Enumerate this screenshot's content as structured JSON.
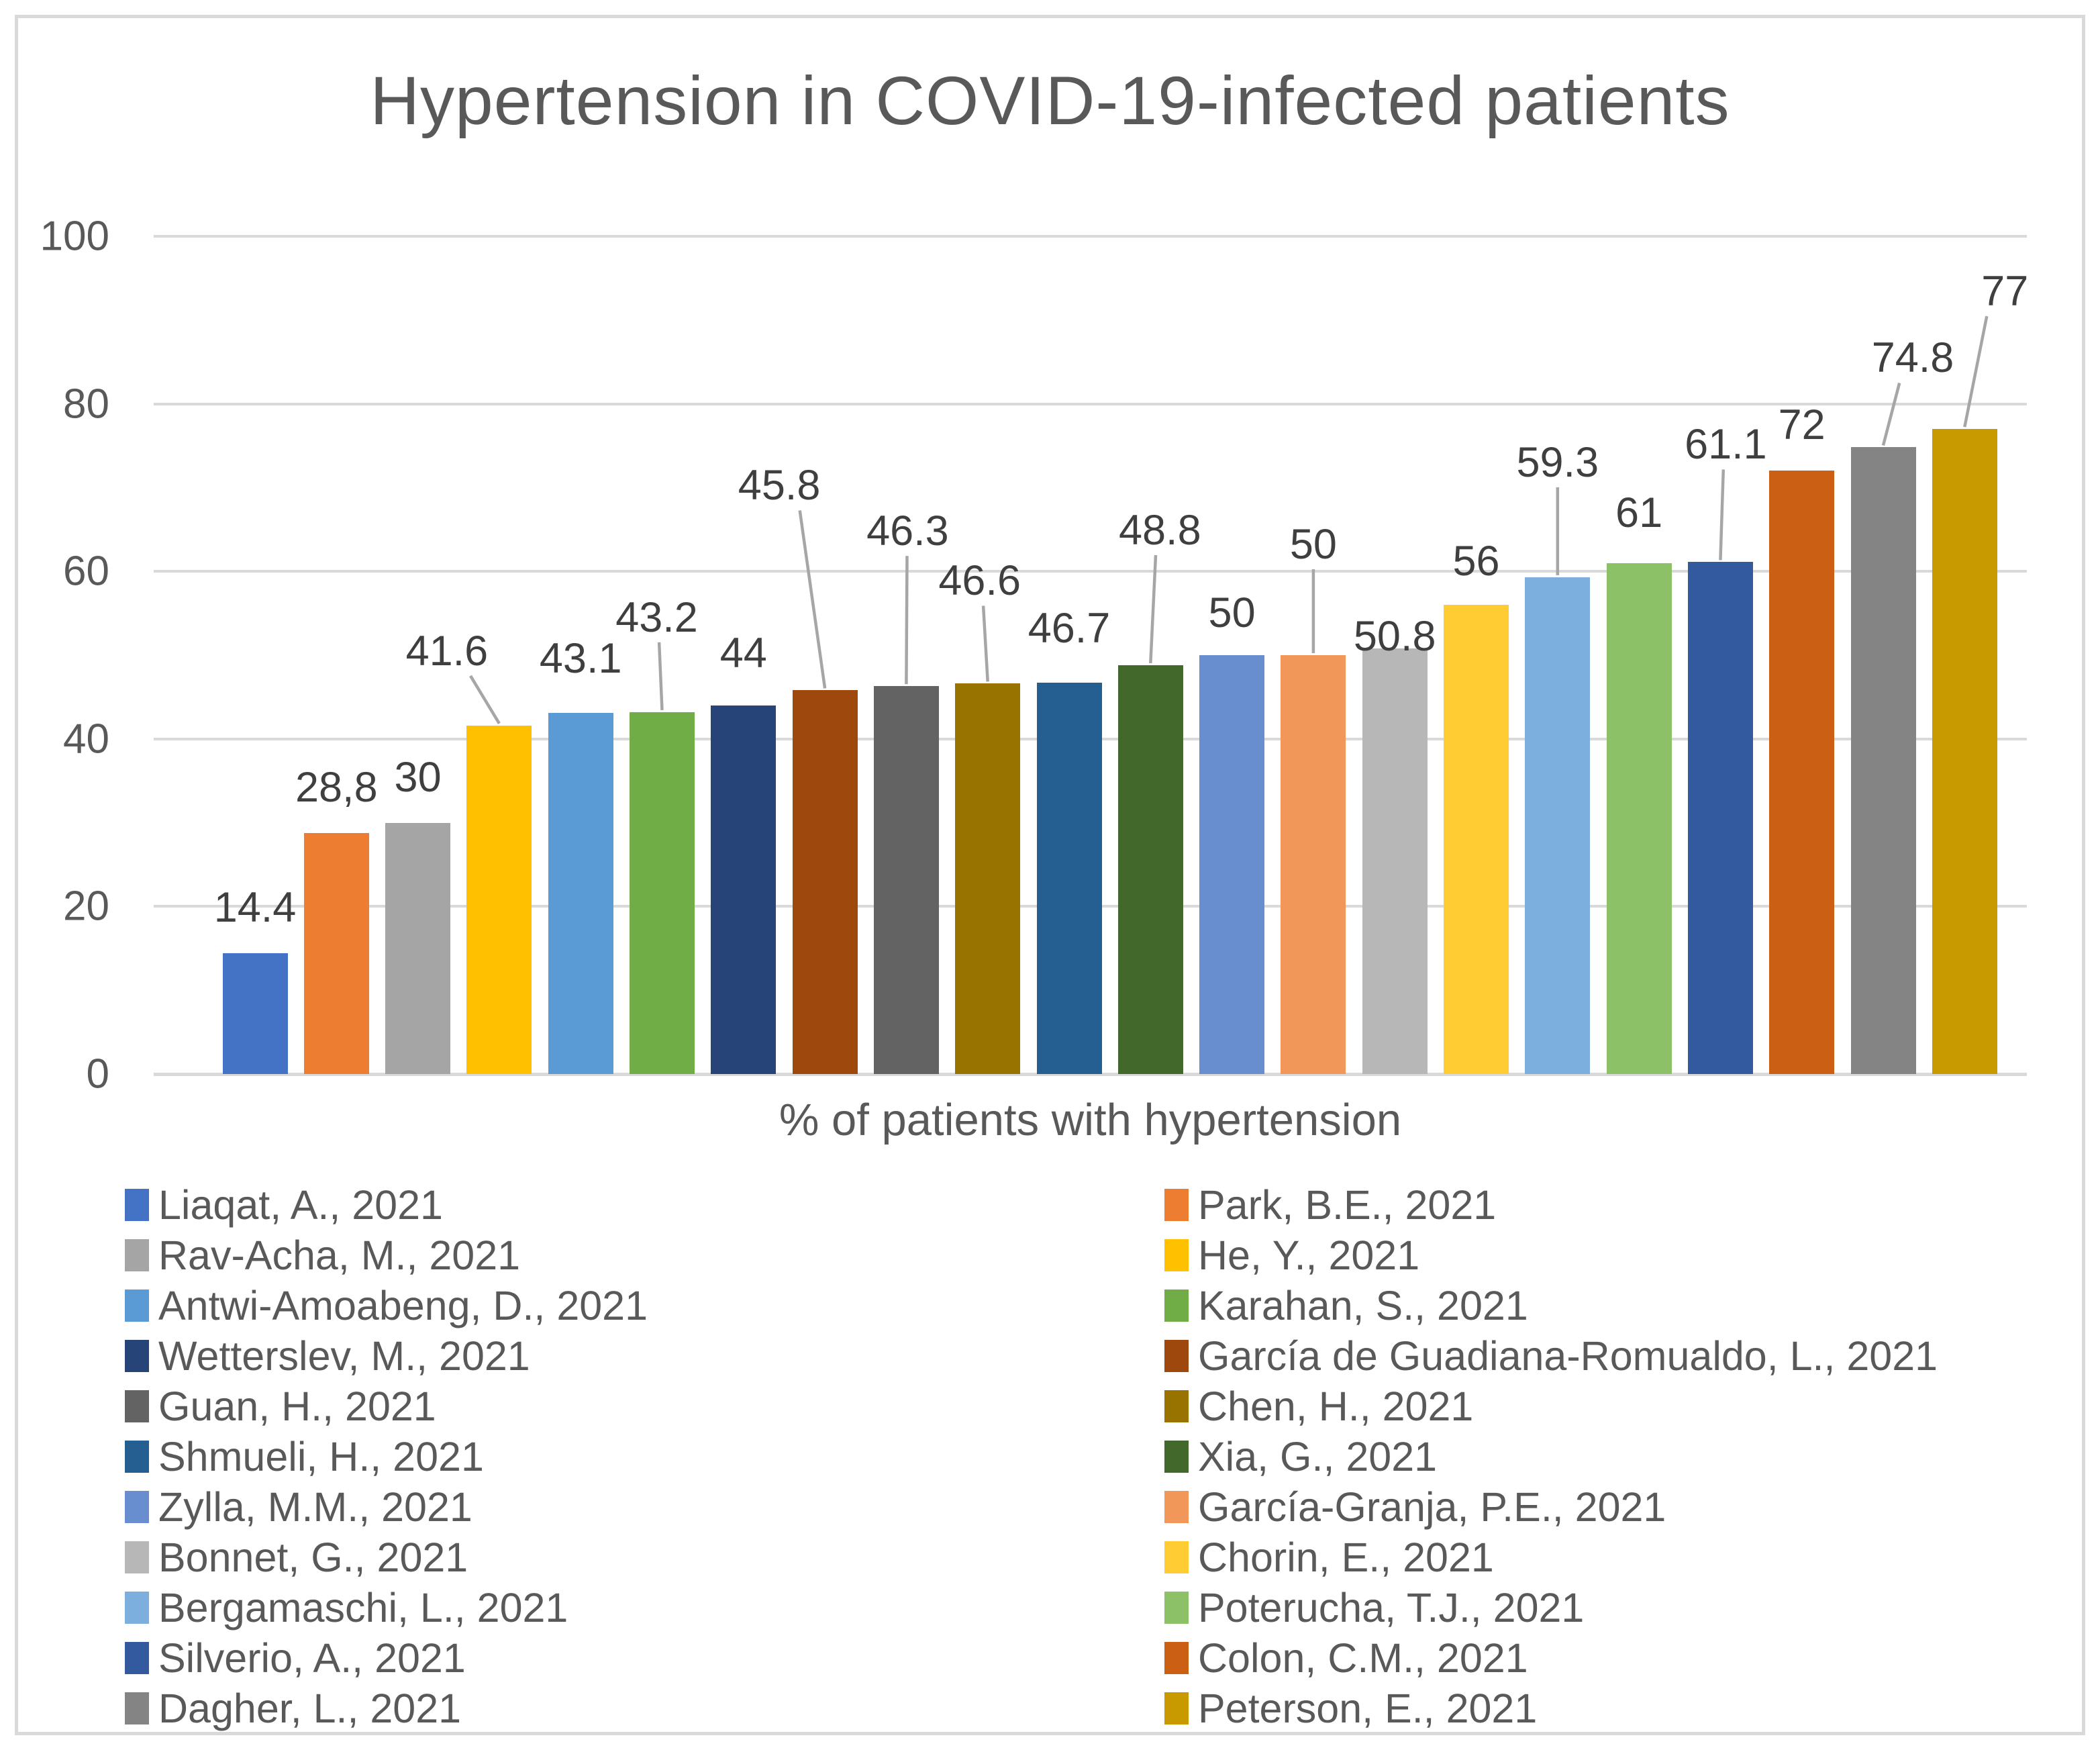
{
  "chart_data": {
    "type": "bar",
    "title": "Hypertension in COVID-19-infected patients",
    "xlabel": "% of patients with hypertension",
    "ylabel": "",
    "ylim": [
      0,
      100
    ],
    "yticks": [
      0,
      20,
      40,
      60,
      80,
      100
    ],
    "grid": true,
    "legend_position": "bottom",
    "legend_columns": 2,
    "style": {
      "axis_text_color": "#595959",
      "value_label_color": "#3F3F3F",
      "gridline_color": "#D9D9D9",
      "leader_line_color": "#A6A6A6",
      "frame_border_color": "#D9D9D9",
      "background": "#FFFFFF"
    },
    "series": [
      {
        "name": "Liaqat, A., 2021",
        "value": 14.4,
        "label": "14.4",
        "color": "#4472C4",
        "label_dy": 35,
        "label_dx": 0,
        "leader": false
      },
      {
        "name": "Park, B.E., 2021",
        "value": 28.8,
        "label": "28,8",
        "color": "#ED7D31",
        "label_dy": 35,
        "label_dx": 0,
        "leader": false
      },
      {
        "name": "Rav-Acha, M., 2021",
        "value": 30,
        "label": "30",
        "color": "#A5A5A5",
        "label_dy": 35,
        "label_dx": 0,
        "leader": false
      },
      {
        "name": "He, Y., 2021",
        "value": 41.6,
        "label": "41.6",
        "color": "#FFC000",
        "label_dy": 78,
        "label_dx": -78,
        "leader": true
      },
      {
        "name": "Antwi-Amoabeng, D., 2021",
        "value": 43.1,
        "label": "43.1",
        "color": "#5B9BD5",
        "label_dy": 48,
        "label_dx": 0,
        "leader": false
      },
      {
        "name": "Karahan, S., 2021",
        "value": 43.2,
        "label": "43.2",
        "color": "#70AD47",
        "label_dy": 108,
        "label_dx": -8,
        "leader": true
      },
      {
        "name": "Wetterslev, M., 2021",
        "value": 44,
        "label": "44",
        "color": "#264478",
        "label_dy": 45,
        "label_dx": 0,
        "leader": false
      },
      {
        "name": "García de Guadiana-Romualdo, L., 2021",
        "value": 45.8,
        "label": "45.8",
        "color": "#9E480E",
        "label_dy": 272,
        "label_dx": -68,
        "leader": true
      },
      {
        "name": "Guan, H., 2021",
        "value": 46.3,
        "label": "46.3",
        "color": "#636363",
        "label_dy": 198,
        "label_dx": 2,
        "leader": true
      },
      {
        "name": "Chen, H., 2021",
        "value": 46.6,
        "label": "46.6",
        "color": "#997300",
        "label_dy": 120,
        "label_dx": -12,
        "leader": true
      },
      {
        "name": "Shmueli, H., 2021",
        "value": 46.7,
        "label": "46.7",
        "color": "#255E91",
        "label_dy": 48,
        "label_dx": 0,
        "leader": false
      },
      {
        "name": "Xia, G., 2021",
        "value": 48.8,
        "label": "48.8",
        "color": "#43682B",
        "label_dy": 168,
        "label_dx": 14,
        "leader": true
      },
      {
        "name": "Zylla, M.M., 2021",
        "value": 50,
        "label": "50",
        "color": "#698ED0",
        "label_dy": 30,
        "label_dx": 0,
        "leader": false
      },
      {
        "name": "García-Granja, P.E., 2021",
        "value": 50,
        "label": "50",
        "color": "#F1975A",
        "label_dy": 132,
        "label_dx": 0,
        "leader": true
      },
      {
        "name": "Bonnet, G., 2021",
        "value": 50.8,
        "label": "50.8",
        "color": "#B7B7B7",
        "label_dy": -15,
        "label_dx": 0,
        "leader": false
      },
      {
        "name": "Chorin, E., 2021",
        "value": 56,
        "label": "56",
        "color": "#FFCD33",
        "label_dy": 32,
        "label_dx": 0,
        "leader": false
      },
      {
        "name": "Bergamaschi, L., 2021",
        "value": 59.3,
        "label": "59.3",
        "color": "#7CAFDD",
        "label_dy": 138,
        "label_dx": 0,
        "leader": true
      },
      {
        "name": "Poterucha, T.J., 2021",
        "value": 61,
        "label": "61",
        "color": "#8CC168",
        "label_dy": 42,
        "label_dx": 0,
        "leader": false
      },
      {
        "name": "Silverio, A., 2021",
        "value": 61.1,
        "label": "61.1",
        "color": "#335A9E",
        "label_dy": 142,
        "label_dx": 8,
        "leader": true
      },
      {
        "name": "Colon, C.M., 2021",
        "value": 72,
        "label": "72",
        "color": "#CB6015",
        "label_dy": 35,
        "label_dx": 0,
        "leader": false
      },
      {
        "name": "Dagher, L., 2021",
        "value": 74.8,
        "label": "74.8",
        "color": "#848484",
        "label_dy": 100,
        "label_dx": 44,
        "leader": true
      },
      {
        "name": "Peterson, E., 2021",
        "value": 77,
        "label": "77",
        "color": "#C89A00",
        "label_dy": 172,
        "label_dx": 60,
        "leader": true
      }
    ]
  }
}
